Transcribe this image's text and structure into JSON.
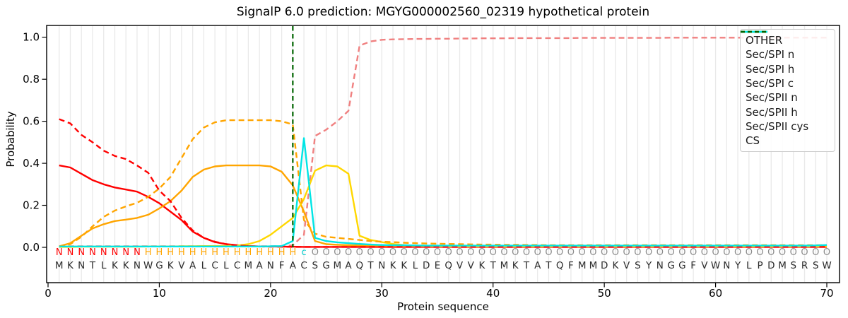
{
  "title": "SignalP 6.0 prediction: MGYG000002560_02319 hypothetical protein",
  "chart_data": {
    "type": "line",
    "title": "SignalP 6.0 prediction: MGYG000002560_02319 hypothetical protein",
    "xlabel": "Protein sequence",
    "ylabel": "Probability",
    "xlim": [
      0,
      70
    ],
    "ylim": [
      0.0,
      1.0
    ],
    "xticks": [
      0,
      10,
      20,
      30,
      40,
      50,
      60,
      70
    ],
    "yticks": [
      0.0,
      0.2,
      0.4,
      0.6,
      0.8,
      1.0
    ],
    "grid": "vertical line per residue, light gray",
    "legend_position": "upper right",
    "sequence": "MKNTLKKNWGKVALCLCMANFACSGMAQTNKKLDEQVVKTMKTATQFMMDKVSYNGGFVWNYLPDMSRSW",
    "region_labels": "NNNNNNNNHHHHHHHHHHHHHHcOOOOOOOOOOOOOOOOOOOOOOOOOOOOOOOOOOOOOOOOOOOOOOO",
    "label_colors": {
      "N": "#ff0000",
      "H": "#ffa500",
      "c": "#00cccc",
      "O": "#8c8c8c"
    },
    "sequence_color": "#2b2b2b",
    "series": [
      {
        "name": "OTHER",
        "color": "#f08080",
        "style": "dashed",
        "values": [
          0.005,
          0.005,
          0.005,
          0.005,
          0.005,
          0.005,
          0.005,
          0.005,
          0.005,
          0.005,
          0.005,
          0.005,
          0.005,
          0.005,
          0.005,
          0.005,
          0.005,
          0.005,
          0.005,
          0.005,
          0.006,
          0.01,
          0.06,
          0.53,
          0.56,
          0.6,
          0.65,
          0.96,
          0.98,
          0.988,
          0.99,
          0.991,
          0.992,
          0.992,
          0.993,
          0.993,
          0.994,
          0.994,
          0.995,
          0.995,
          0.995,
          0.996,
          0.996,
          0.996,
          0.996,
          0.996,
          0.996,
          0.997,
          0.997,
          0.997,
          0.997,
          0.997,
          0.997,
          0.997,
          0.997,
          0.998,
          0.998,
          0.998,
          0.998,
          0.998,
          0.998,
          0.998,
          0.998,
          0.998,
          0.998,
          0.998,
          0.998,
          0.998,
          0.998,
          0.998
        ]
      },
      {
        "name": "Sec/SPI n",
        "color": "#ff0000",
        "style": "solid",
        "values": [
          0.39,
          0.38,
          0.35,
          0.32,
          0.3,
          0.285,
          0.275,
          0.265,
          0.24,
          0.21,
          0.17,
          0.13,
          0.075,
          0.045,
          0.025,
          0.015,
          0.01,
          0.006,
          0.004,
          0.004,
          0.003,
          0.003,
          0.002,
          0.002,
          0.002,
          0.002,
          0.002,
          0.002,
          0.002,
          0.002,
          0.002,
          0.002,
          0.002,
          0.002,
          0.002,
          0.002,
          0.002,
          0.002,
          0.002,
          0.002,
          0.002,
          0.002,
          0.002,
          0.002,
          0.002,
          0.002,
          0.002,
          0.002,
          0.002,
          0.002,
          0.002,
          0.002,
          0.002,
          0.002,
          0.002,
          0.002,
          0.002,
          0.002,
          0.002,
          0.002,
          0.002,
          0.002,
          0.002,
          0.002,
          0.002,
          0.002,
          0.002,
          0.002,
          0.002,
          0.002
        ]
      },
      {
        "name": "Sec/SPI h",
        "color": "#ffa500",
        "style": "solid",
        "values": [
          0.005,
          0.02,
          0.055,
          0.09,
          0.11,
          0.125,
          0.132,
          0.14,
          0.155,
          0.185,
          0.22,
          0.27,
          0.335,
          0.37,
          0.385,
          0.39,
          0.39,
          0.39,
          0.39,
          0.385,
          0.36,
          0.295,
          0.17,
          0.03,
          0.015,
          0.012,
          0.01,
          0.009,
          0.008,
          0.008,
          0.007,
          0.007,
          0.007,
          0.007,
          0.007,
          0.007,
          0.007,
          0.007,
          0.007,
          0.007,
          0.007,
          0.007,
          0.007,
          0.007,
          0.007,
          0.007,
          0.007,
          0.007,
          0.007,
          0.007,
          0.007,
          0.007,
          0.007,
          0.007,
          0.007,
          0.007,
          0.007,
          0.007,
          0.007,
          0.007,
          0.007,
          0.007,
          0.007,
          0.007,
          0.007,
          0.007,
          0.007,
          0.007,
          0.007,
          0.007
        ]
      },
      {
        "name": "Sec/SPI c",
        "color": "#ffd700",
        "style": "solid",
        "values": [
          0.002,
          0.002,
          0.003,
          0.003,
          0.003,
          0.003,
          0.003,
          0.003,
          0.004,
          0.004,
          0.004,
          0.005,
          0.005,
          0.006,
          0.006,
          0.007,
          0.008,
          0.015,
          0.03,
          0.06,
          0.1,
          0.14,
          0.23,
          0.365,
          0.39,
          0.385,
          0.35,
          0.055,
          0.035,
          0.025,
          0.016,
          0.01,
          0.008,
          0.006,
          0.005,
          0.004,
          0.004,
          0.004,
          0.004,
          0.004,
          0.004,
          0.004,
          0.004,
          0.004,
          0.004,
          0.004,
          0.004,
          0.004,
          0.004,
          0.004,
          0.004,
          0.004,
          0.004,
          0.004,
          0.004,
          0.004,
          0.004,
          0.004,
          0.004,
          0.004,
          0.004,
          0.004,
          0.004,
          0.004,
          0.004,
          0.004,
          0.004,
          0.004,
          0.004,
          0.004
        ]
      },
      {
        "name": "Sec/SPII n",
        "color": "#ff0000",
        "style": "dashed",
        "values": [
          0.61,
          0.59,
          0.535,
          0.5,
          0.46,
          0.435,
          0.42,
          0.39,
          0.355,
          0.27,
          0.22,
          0.14,
          0.08,
          0.045,
          0.027,
          0.015,
          0.009,
          0.006,
          0.004,
          0.003,
          0.003,
          0.002,
          0.002,
          0.002,
          0.002,
          0.002,
          0.002,
          0.002,
          0.002,
          0.002,
          0.002,
          0.002,
          0.002,
          0.002,
          0.002,
          0.002,
          0.002,
          0.002,
          0.002,
          0.002,
          0.002,
          0.002,
          0.002,
          0.002,
          0.002,
          0.002,
          0.002,
          0.002,
          0.002,
          0.002,
          0.002,
          0.002,
          0.002,
          0.002,
          0.002,
          0.002,
          0.002,
          0.002,
          0.002,
          0.002,
          0.002,
          0.002,
          0.002,
          0.002,
          0.002,
          0.002,
          0.002,
          0.002,
          0.002,
          0.002
        ]
      },
      {
        "name": "Sec/SPII h",
        "color": "#ffa500",
        "style": "dashed",
        "values": [
          0.003,
          0.015,
          0.05,
          0.1,
          0.145,
          0.175,
          0.195,
          0.212,
          0.24,
          0.28,
          0.335,
          0.425,
          0.515,
          0.57,
          0.595,
          0.605,
          0.605,
          0.605,
          0.605,
          0.605,
          0.6,
          0.585,
          0.13,
          0.065,
          0.05,
          0.045,
          0.04,
          0.035,
          0.03,
          0.027,
          0.025,
          0.022,
          0.02,
          0.018,
          0.017,
          0.016,
          0.015,
          0.014,
          0.013,
          0.013,
          0.012,
          0.012,
          0.011,
          0.011,
          0.01,
          0.01,
          0.01,
          0.01,
          0.01,
          0.01,
          0.01,
          0.01,
          0.01,
          0.01,
          0.01,
          0.01,
          0.01,
          0.01,
          0.01,
          0.01,
          0.01,
          0.01,
          0.01,
          0.01,
          0.01,
          0.01,
          0.01,
          0.01,
          0.01,
          0.01
        ]
      },
      {
        "name": "Sec/SPII cys",
        "color": "#00e5e5",
        "style": "solid",
        "values": [
          0.004,
          0.004,
          0.004,
          0.004,
          0.004,
          0.004,
          0.004,
          0.004,
          0.004,
          0.004,
          0.004,
          0.004,
          0.004,
          0.004,
          0.004,
          0.004,
          0.004,
          0.004,
          0.004,
          0.005,
          0.006,
          0.03,
          0.52,
          0.045,
          0.03,
          0.024,
          0.02,
          0.016,
          0.013,
          0.011,
          0.01,
          0.01,
          0.009,
          0.008,
          0.008,
          0.008,
          0.008,
          0.008,
          0.008,
          0.008,
          0.008,
          0.008,
          0.008,
          0.008,
          0.008,
          0.008,
          0.008,
          0.008,
          0.008,
          0.008,
          0.008,
          0.008,
          0.008,
          0.008,
          0.008,
          0.008,
          0.008,
          0.008,
          0.008,
          0.008,
          0.008,
          0.008,
          0.008,
          0.008,
          0.008,
          0.008,
          0.008,
          0.008,
          0.009,
          0.011
        ]
      }
    ],
    "cs_line": {
      "name": "CS",
      "x": 22,
      "color": "#006400",
      "style": "dashed"
    }
  }
}
